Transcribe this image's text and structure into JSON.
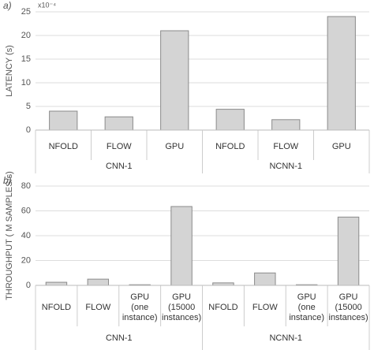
{
  "chart_data": [
    {
      "type": "bar",
      "panel": "a)",
      "y_label": "LATENCY (s)",
      "y_multiplier": "x10⁻⁴",
      "categories": [
        "NFOLD",
        "FLOW",
        "GPU",
        "NFOLD",
        "FLOW",
        "GPU"
      ],
      "groups": [
        {
          "name": "CNN-1",
          "size": 3
        },
        {
          "name": "NCNN-1",
          "size": 3
        }
      ],
      "values": [
        4,
        2.8,
        21,
        4.4,
        2.2,
        24
      ],
      "color": "#d4d4d4",
      "ylim": [
        0,
        25
      ],
      "yticks": [
        0,
        5,
        10,
        15,
        20,
        25
      ],
      "grid": true
    },
    {
      "type": "bar",
      "panel": "b)",
      "y_label": "THROUGHPUT ( M SAMPLES/s)",
      "categories": [
        "NFOLD",
        "FLOW",
        "GPU (one instance)",
        "GPU (15000 instances)",
        "NFOLD",
        "FLOW",
        "GPU (one instance)",
        "GPU (15000 instances)"
      ],
      "groups": [
        {
          "name": "CNN-1",
          "size": 4
        },
        {
          "name": "NCNN-1",
          "size": 4
        }
      ],
      "values": [
        2.5,
        5,
        0.5,
        63.5,
        2,
        10,
        0.5,
        55
      ],
      "color": "#d4d4d4",
      "ylim": [
        0,
        80
      ],
      "yticks": [
        0,
        20,
        40,
        60,
        80
      ],
      "grid": true
    }
  ]
}
